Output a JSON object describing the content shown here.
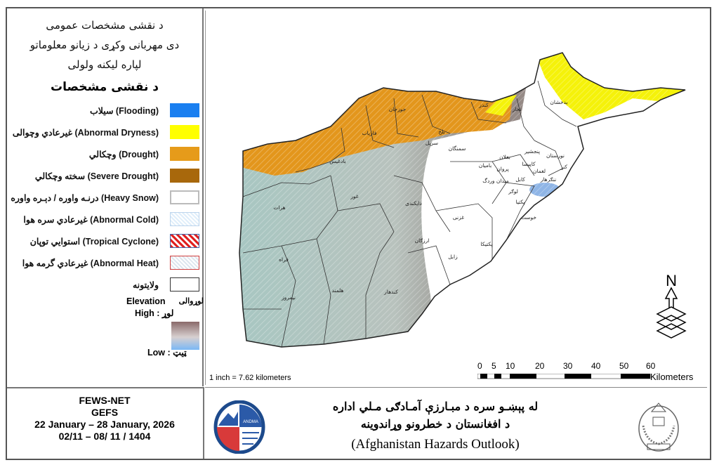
{
  "legend": {
    "title_lines": [
      "د نقشی مشخصات عمومی",
      "دی مهربانی وکړی د زیانو معلوماتو",
      "لپاره لیکنه ولولی"
    ],
    "heading": "د نقشی مشخصات",
    "items": [
      {
        "label": "سیلاب (Flooding)",
        "color": "#1a7ff0"
      },
      {
        "label": "غیرعادي وچوالی (Abnormal Dryness)",
        "color": "#ffff00"
      },
      {
        "label": "وچکالي (Drought)",
        "color": "#e69b1a"
      },
      {
        "label": "سخته وچکالي (Severe Drought)",
        "color": "#a8680c"
      },
      {
        "label": "درنـه واوره / دېـره واوره (Heavy Snow)",
        "color": "#ffffff"
      },
      {
        "label": "غیرعادي سره هوا (Abnormal Cold)",
        "color": "#dfeefa"
      },
      {
        "label": "استوایي توپان (Tropical Cyclone)",
        "color": "#e02020"
      },
      {
        "label": "غیرعادي گرمه هوا (Abnormal Heat)",
        "color": "#e8eef5"
      },
      {
        "label": "ولایتونه",
        "color": "#ffffff"
      }
    ],
    "elevation": {
      "title": "Elevation",
      "title_ps": "لوړوالی",
      "high": "High : لوړ",
      "low": "Low : ټیټ",
      "high_color": "#8a6a6a",
      "low_color": "#7ab8f5"
    }
  },
  "map": {
    "provinces": [
      "بدخشان",
      "تخار",
      "کندز",
      "بلخ",
      "جوزجان",
      "فاریاب",
      "سمنگان",
      "سرپل",
      "بادغیس",
      "بغلان",
      "نورستان",
      "پنجشیر",
      "کاپیسا",
      "لغمان",
      "کنړ",
      "ننګرهار",
      "بامیان",
      "پروان",
      "کابل",
      "میدان وردگ",
      "لوګر",
      "پکتیا",
      "خوست",
      "غزنی",
      "پکتیکا",
      "دایکندی",
      "غور",
      "هرات",
      "فراه",
      "ارزګان",
      "زابل",
      "نیمروز",
      "هلمند",
      "کندهار"
    ],
    "north_arrow": "N",
    "inch_scale": "1 inch = 7.62 kilometers",
    "scale_ticks": [
      "0",
      "5",
      "10",
      "20",
      "30",
      "40",
      "50",
      "60"
    ],
    "scale_unit": "Kilometers"
  },
  "footer": {
    "org": "FEWS-NET",
    "model": "GEFS",
    "date_range": "22 January – 28 January, 2026",
    "solar_range": "02/11 – 08/ 11 / 1404",
    "title_ps_1": "له پېښـو سره د مبـارزې  آمـادګی مـلي اداره",
    "title_ps_2": "د افغانستان د خطرونو وړاندوینه",
    "title_en": "(Afghanistan Hazards Outlook)",
    "andma_logo": "ANDMA"
  }
}
